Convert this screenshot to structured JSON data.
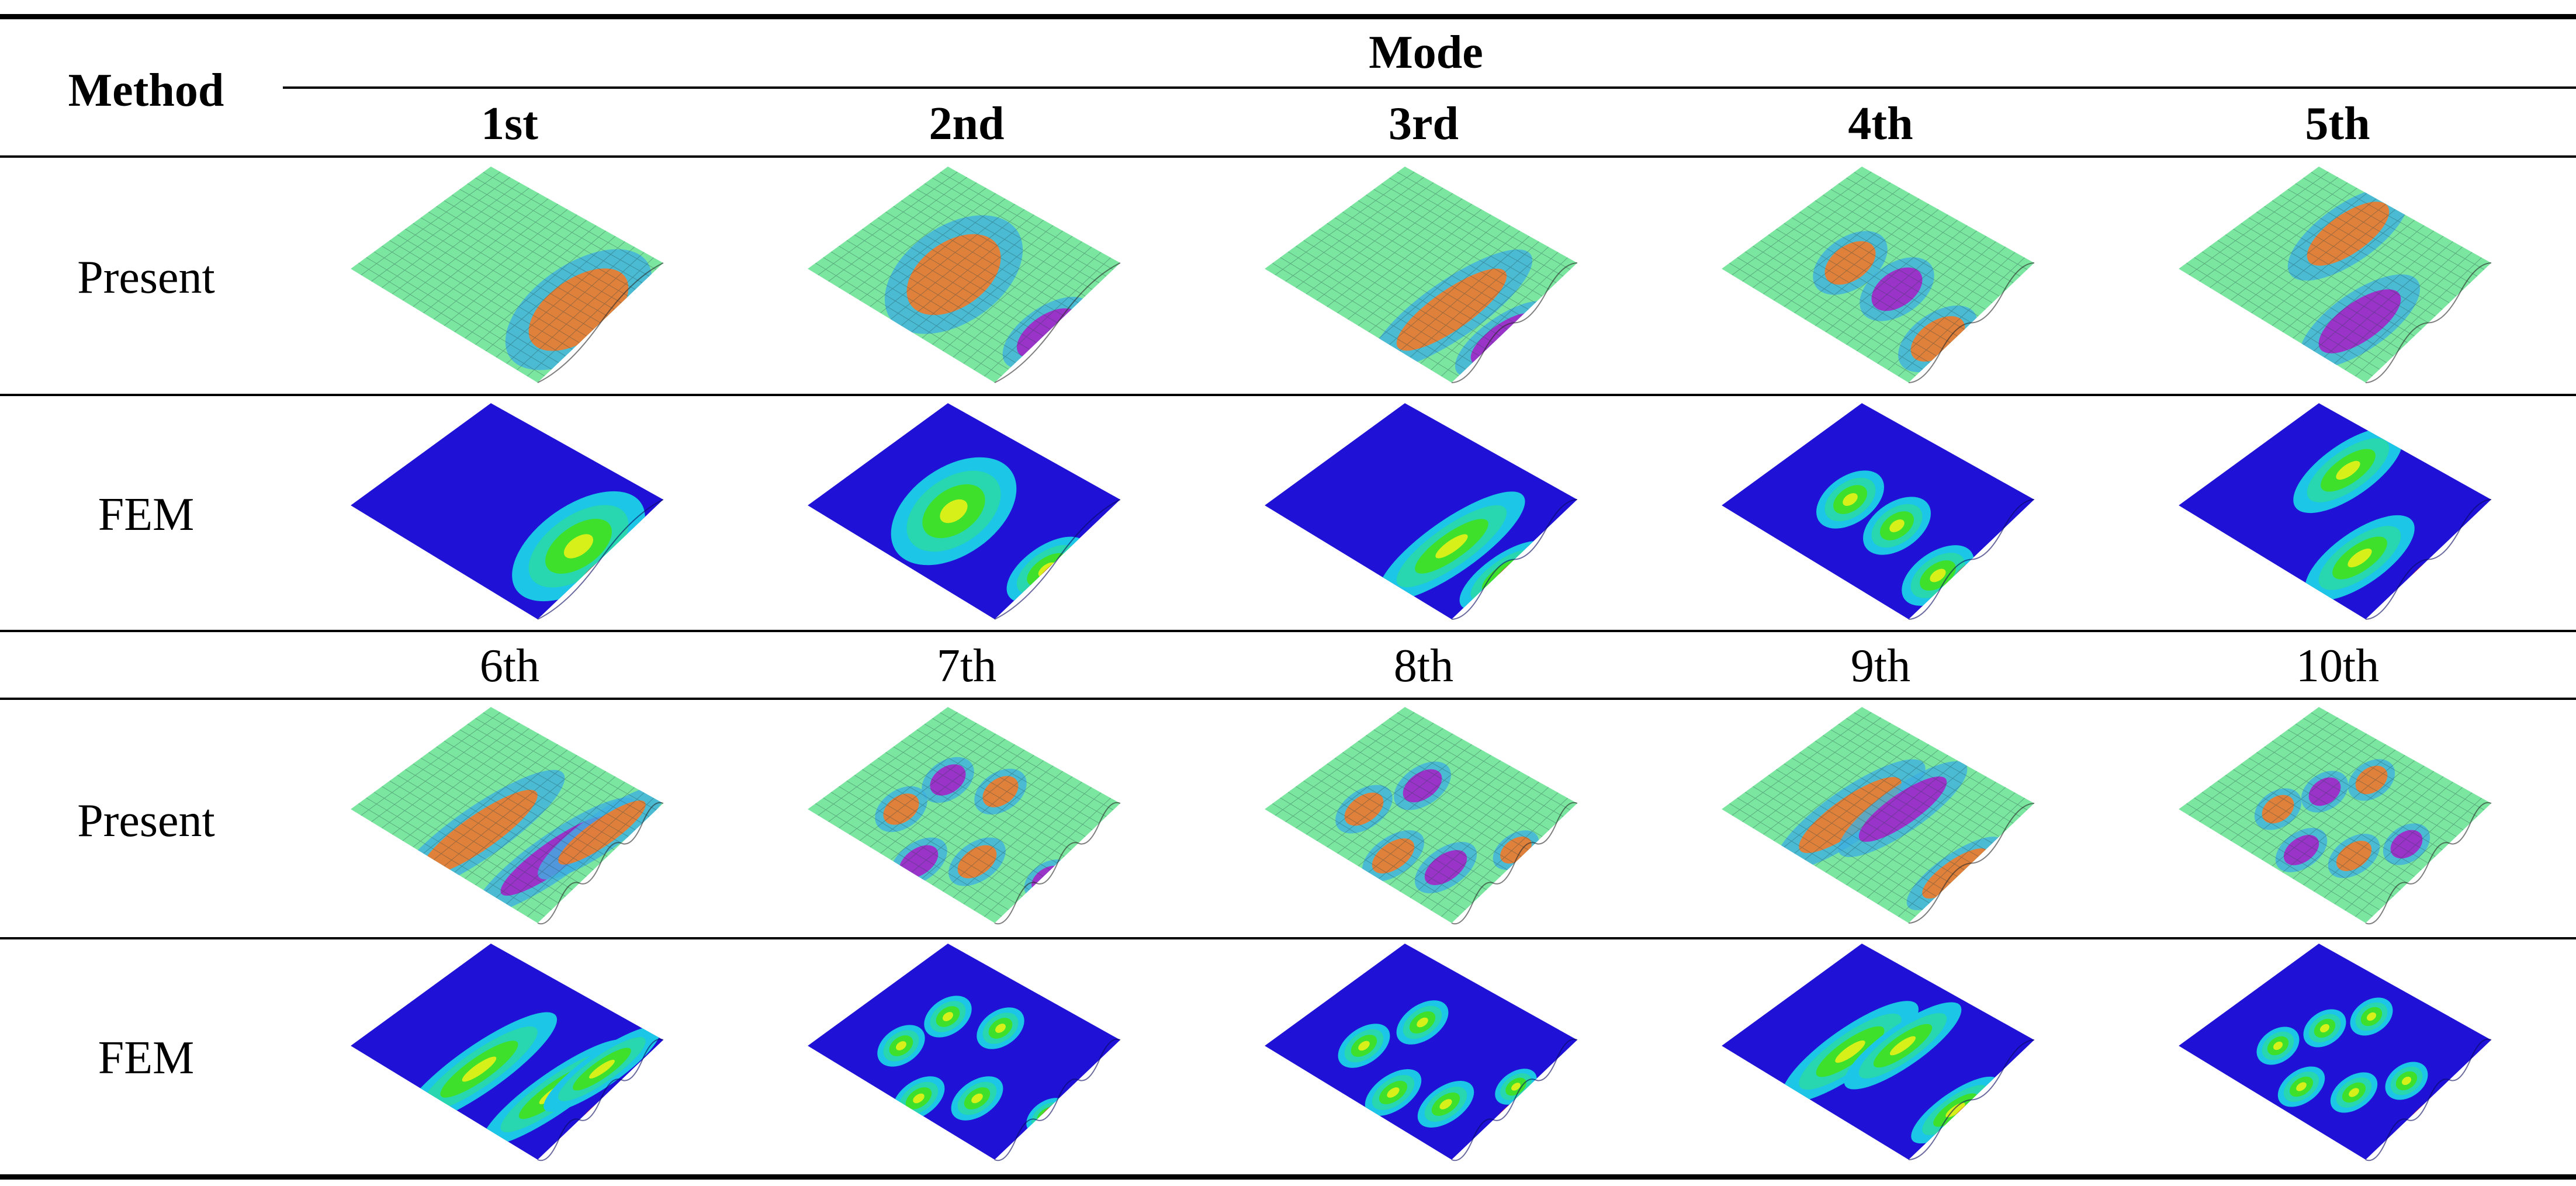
{
  "table": {
    "method_header": "Method",
    "mode_header": "Mode",
    "mode_labels_top": [
      "1st",
      "2nd",
      "3rd",
      "4th",
      "5th"
    ],
    "mode_labels_bottom": [
      "6th",
      "7th",
      "8th",
      "9th",
      "10th"
    ],
    "row_labels": [
      "Present",
      "FEM",
      "Present",
      "FEM"
    ]
  },
  "colors": {
    "fem_blue": "#1f12d6",
    "fem_cyan": "#1bc6e6",
    "fem_green": "#3ee02c",
    "fem_yellow": "#d8f01a",
    "fem_red": "#f01c10",
    "present_green": "#7be6a0",
    "present_magenta": "#a326c8",
    "present_orange": "#f07a2a",
    "rule": "#000000"
  },
  "figure_elements": {
    "present": "mode shape surface with mesh (rainbow colormap)",
    "fem": "mode shape surface with contour bands (blue to red)"
  }
}
